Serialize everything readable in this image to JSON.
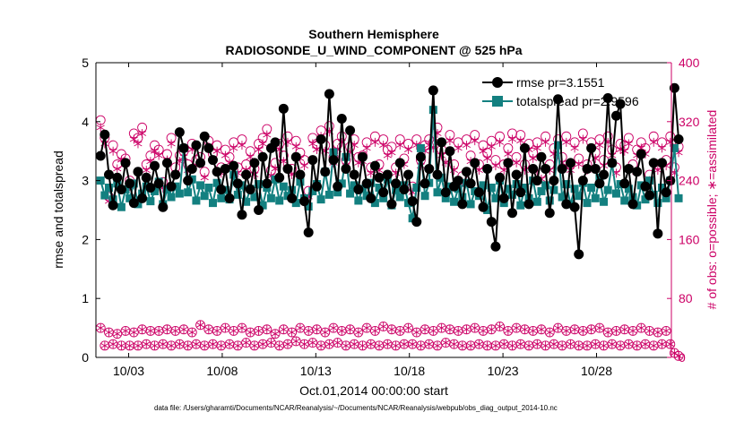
{
  "chart_data": {
    "type": "line",
    "title": "Southern Hemisphere",
    "subtitle": "RADIOSONDE_U_WIND_COMPONENT @ 525 hPa",
    "xlabel": "Oct.01,2014 00:00:00 start",
    "ylabel_left": "rmse and totalspread",
    "ylabel_right": "# of obs: o=possible; ∗=assimilated",
    "x_ticks": [
      "10/03",
      "10/08",
      "10/13",
      "10/18",
      "10/23",
      "10/28"
    ],
    "x_tick_days": [
      3,
      8,
      13,
      18,
      23,
      28
    ],
    "x_range_days": [
      1.25,
      32.0
    ],
    "y_left_range": [
      0,
      5
    ],
    "y_left_ticks": [
      "0",
      "1",
      "2",
      "3",
      "4",
      "5"
    ],
    "y_right_range": [
      0,
      400
    ],
    "y_right_ticks": [
      "0",
      "80",
      "160",
      "240",
      "320",
      "400"
    ],
    "colors": {
      "rmse": "#000000",
      "spread": "#138080",
      "obs": "#cc0066"
    },
    "series": [
      {
        "name": "rmse",
        "legend": "rmse pr=3.1551",
        "axis": "left",
        "values": [
          3.42,
          3.78,
          3.1,
          2.58,
          3.05,
          2.85,
          3.3,
          2.95,
          2.62,
          3.15,
          2.7,
          3.05,
          2.88,
          3.25,
          2.95,
          2.55,
          3.3,
          2.9,
          3.1,
          3.82,
          3.55,
          3.0,
          3.2,
          3.6,
          3.3,
          3.75,
          3.55,
          3.35,
          3.15,
          2.85,
          3.2,
          2.7,
          3.25,
          2.95,
          2.42,
          3.1,
          2.85,
          3.3,
          2.5,
          3.4,
          2.95,
          3.55,
          3.65,
          3.05,
          4.22,
          3.2,
          2.7,
          3.4,
          3.1,
          2.65,
          2.12,
          3.35,
          2.9,
          3.7,
          3.15,
          4.47,
          3.35,
          2.9,
          4.05,
          3.2,
          3.85,
          3.1,
          2.85,
          3.4,
          2.95,
          2.7,
          3.25,
          3.05,
          2.8,
          3.1,
          2.6,
          2.95,
          3.3,
          2.85,
          3.1,
          2.65,
          2.3,
          3.4,
          2.95,
          3.2,
          4.53,
          3.1,
          3.65,
          2.8,
          3.5,
          2.9,
          3.0,
          2.6,
          3.15,
          2.95,
          3.3,
          2.8,
          2.55,
          3.2,
          2.3,
          1.88,
          3.05,
          2.7,
          3.3,
          2.45,
          3.1,
          2.8,
          3.55,
          2.6,
          3.2,
          3.0,
          3.4,
          3.2,
          2.45,
          3.0,
          4.38,
          3.2,
          2.6,
          3.3,
          2.55,
          1.75,
          3.0,
          3.2,
          3.55,
          3.2,
          2.95,
          3.1,
          4.4,
          3.3,
          4.1,
          4.3,
          2.95,
          3.2,
          2.6,
          3.15,
          3.45,
          2.9,
          2.75,
          3.3,
          2.1,
          3.3,
          2.8,
          3.0,
          4.57,
          3.7
        ]
      },
      {
        "name": "totalspread",
        "legend": "totalspread pr=2.9596",
        "axis": "left",
        "values": [
          3.0,
          2.75,
          2.88,
          2.68,
          2.95,
          2.55,
          2.85,
          2.7,
          2.95,
          2.6,
          2.78,
          2.9,
          2.65,
          2.82,
          2.98,
          2.6,
          2.85,
          2.72,
          2.9,
          2.78,
          3.55,
          2.8,
          3.02,
          2.66,
          2.92,
          2.74,
          2.88,
          2.62,
          2.96,
          2.7,
          2.84,
          2.68,
          3.1,
          2.76,
          2.92,
          2.64,
          2.86,
          2.72,
          2.94,
          2.58,
          2.88,
          2.7,
          3.02,
          2.66,
          2.9,
          2.74,
          2.84,
          2.62,
          2.98,
          2.7,
          2.56,
          2.82,
          2.94,
          2.68,
          3.15,
          2.76,
          3.48,
          2.8,
          2.95,
          3.4,
          2.78,
          2.92,
          2.66,
          2.86,
          2.74,
          2.96,
          2.62,
          2.88,
          2.7,
          3.02,
          2.58,
          2.84,
          2.72,
          2.92,
          2.62,
          2.36,
          2.88,
          3.55,
          2.74,
          2.96,
          4.2,
          2.8,
          3.05,
          2.7,
          2.9,
          2.64,
          2.86,
          2.72,
          2.96,
          2.6,
          2.82,
          2.74,
          2.92,
          2.5,
          2.88,
          2.7,
          3.0,
          2.62,
          2.86,
          2.76,
          2.94,
          2.58,
          2.88,
          2.7,
          3.0,
          2.64,
          2.82,
          2.92,
          2.66,
          2.84,
          3.6,
          2.72,
          2.94,
          2.6,
          2.86,
          2.74,
          2.96,
          2.62,
          2.88,
          2.7,
          3.05,
          2.64,
          2.84,
          3.3,
          2.78,
          2.94,
          2.66,
          2.86,
          2.72,
          2.58,
          2.92,
          2.68,
          3.0,
          2.76,
          2.62,
          2.88,
          2.7,
          3.0,
          3.55,
          2.7
        ]
      },
      {
        "name": "obs_possible",
        "legend": "o=possible",
        "axis": "right",
        "values": [
          322,
          298,
          218,
          288,
          262,
          276,
          270,
          240,
          304,
          298,
          312,
          262,
          274,
          288,
          282,
          238,
          276,
          298,
          258,
          274,
          280,
          262,
          290,
          268,
          272,
          252,
          294,
          276,
          288,
          258,
          282,
          272,
          292,
          258,
          296,
          262,
          280,
          256,
          290,
          298,
          310,
          254,
          264,
          290,
          274,
          300,
          256,
          294,
          278,
          268,
          226,
          298,
          290,
          308,
          288,
          314,
          272,
          290,
          300,
          268,
          286,
          296,
          272,
          274,
          292,
          258,
          300,
          262,
          296,
          282,
          286,
          258,
          296,
          270,
          290,
          232,
          296,
          268,
          288,
          296,
          292,
          312,
          282,
          272,
          302,
          262,
          292,
          246,
          296,
          274,
          302,
          262,
          288,
          278,
          294,
          268,
          300,
          262,
          284,
          304,
          272,
          302,
          262,
          290,
          278,
          292,
          250,
          300,
          262,
          284,
          296,
          272,
          300,
          262,
          292,
          270,
          304,
          262,
          292,
          278,
          296,
          268,
          300,
          282,
          258,
          290,
          288,
          298,
          262,
          282,
          292,
          284,
          248,
          300,
          262,
          292,
          268,
          300,
          258,
          286
        ]
      },
      {
        "name": "obs_assimilated",
        "legend": "∗=assimilated",
        "axis": "right",
        "values": [
          312,
          290,
          212,
          280,
          256,
          268,
          262,
          232,
          296,
          290,
          304,
          254,
          266,
          280,
          274,
          230,
          268,
          290,
          250,
          266,
          272,
          254,
          282,
          260,
          264,
          244,
          286,
          268,
          280,
          250,
          274,
          264,
          284,
          250,
          288,
          254,
          272,
          248,
          282,
          290,
          302,
          246,
          256,
          282,
          266,
          292,
          248,
          286,
          270,
          260,
          218,
          290,
          282,
          300,
          280,
          306,
          264,
          282,
          292,
          260,
          278,
          288,
          264,
          266,
          284,
          250,
          292,
          254,
          288,
          274,
          278,
          250,
          288,
          262,
          282,
          224,
          288,
          260,
          280,
          288,
          284,
          304,
          274,
          264,
          294,
          254,
          284,
          238,
          288,
          266,
          294,
          254,
          280,
          270,
          286,
          260,
          292,
          254,
          276,
          296,
          264,
          294,
          254,
          282,
          270,
          284,
          242,
          292,
          254,
          276,
          288,
          264,
          292,
          254,
          284,
          262,
          296,
          254,
          284,
          270,
          288,
          260,
          292,
          274,
          250,
          282,
          280,
          290,
          254,
          274,
          284,
          276,
          240,
          292,
          254,
          284,
          260,
          292,
          250,
          278
        ]
      },
      {
        "name": "obs_possible_low",
        "axis": "right",
        "values": [
          40,
          16,
          34,
          18,
          32,
          16,
          36,
          16,
          34,
          16,
          38,
          18,
          36,
          16,
          36,
          18,
          38,
          16,
          36,
          18,
          38,
          16,
          34,
          18,
          44,
          16,
          38,
          18,
          36,
          16,
          40,
          18,
          36,
          16,
          40,
          20,
          34,
          16,
          36,
          18,
          38,
          20,
          32,
          16,
          38,
          18,
          34,
          22,
          40,
          18,
          36,
          20,
          38,
          16,
          34,
          18,
          40,
          20,
          36,
          16,
          38,
          18,
          34,
          16,
          40,
          18,
          36,
          16,
          42,
          18,
          38,
          16,
          36,
          18,
          40,
          18,
          34,
          16,
          38,
          18,
          36,
          16,
          40,
          20,
          38,
          18,
          36,
          16,
          38,
          16,
          40,
          18,
          36,
          16,
          38,
          16,
          42,
          18,
          36,
          16,
          40,
          18,
          38,
          16,
          36,
          18,
          38,
          16,
          34,
          18,
          40,
          16,
          36,
          18,
          38,
          16,
          36,
          16,
          38,
          18,
          40,
          16,
          34,
          18,
          36,
          16,
          38,
          18,
          36,
          16,
          40,
          18,
          36,
          16,
          34,
          18,
          36,
          18,
          6,
          2
        ]
      },
      {
        "name": "obs_assimilated_low",
        "axis": "right",
        "values": [
          40,
          16,
          34,
          18,
          32,
          16,
          36,
          16,
          34,
          16,
          38,
          18,
          36,
          16,
          36,
          18,
          38,
          16,
          36,
          18,
          38,
          16,
          34,
          18,
          44,
          16,
          38,
          18,
          36,
          16,
          40,
          18,
          36,
          16,
          40,
          20,
          34,
          16,
          36,
          18,
          38,
          20,
          32,
          16,
          38,
          18,
          34,
          22,
          40,
          18,
          36,
          20,
          38,
          16,
          34,
          18,
          40,
          20,
          36,
          16,
          38,
          18,
          34,
          16,
          40,
          18,
          36,
          16,
          42,
          18,
          38,
          16,
          36,
          18,
          40,
          18,
          34,
          16,
          38,
          18,
          36,
          16,
          40,
          20,
          38,
          18,
          36,
          16,
          38,
          16,
          40,
          18,
          36,
          16,
          38,
          16,
          42,
          18,
          36,
          16,
          40,
          18,
          38,
          16,
          36,
          18,
          38,
          16,
          34,
          18,
          40,
          16,
          36,
          18,
          38,
          16,
          36,
          16,
          38,
          18,
          40,
          16,
          34,
          18,
          36,
          16,
          38,
          18,
          36,
          16,
          40,
          18,
          36,
          16,
          34,
          18,
          36,
          18,
          6,
          2
        ]
      }
    ],
    "legend_position": "top-right"
  },
  "footnote": "data file: /Users/gharamti/Documents/NCAR/Reanalysis/~/Documents/NCAR/Reanalysis/webpub/obs_diag_output_2014-10.nc"
}
